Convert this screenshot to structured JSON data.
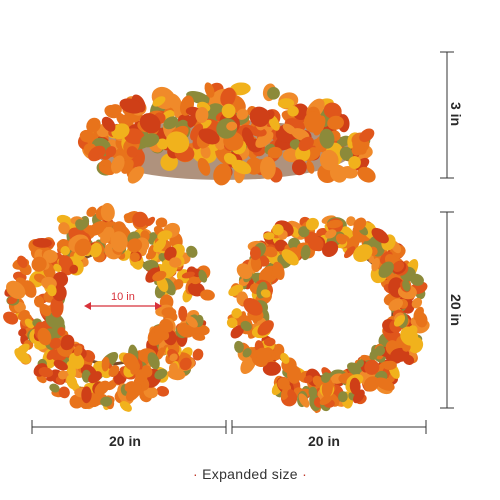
{
  "image": {
    "product": "autumn wreath",
    "colors": {
      "leaf_orange": "#e8731b",
      "leaf_red": "#cf3f17",
      "leaf_yellow": "#f1b21c",
      "leaf_olive": "#8c8a3a",
      "vine": "#7a4a26",
      "dimension_line": "#333333",
      "accent_arrow": "#d8323a"
    }
  },
  "dimensions": {
    "height_label": "3 in",
    "ring_height_label": "20 in",
    "left_width_label": "20 in",
    "right_width_label": "20 in",
    "inner_diameter_label": "10 in"
  },
  "caption": {
    "text": "Expanded size",
    "bullet": "·"
  }
}
